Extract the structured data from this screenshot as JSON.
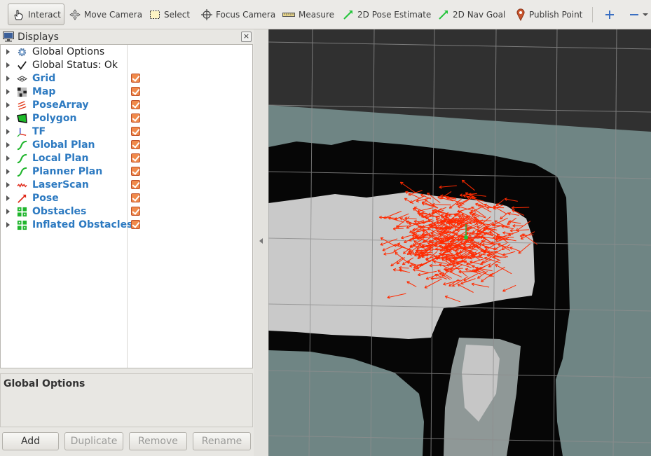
{
  "toolbar": {
    "tools": [
      {
        "label": "Interact",
        "icon": "hand-cursor-icon",
        "active": true
      },
      {
        "label": "Move Camera",
        "icon": "move-camera-icon"
      },
      {
        "label": "Select",
        "icon": "select-rectangle-icon"
      },
      {
        "label": "Focus Camera",
        "icon": "crosshair-icon"
      },
      {
        "label": "Measure",
        "icon": "ruler-icon"
      },
      {
        "label": "2D Pose Estimate",
        "icon": "green-arrow-icon"
      },
      {
        "label": "2D Nav Goal",
        "icon": "green-arrow-icon"
      },
      {
        "label": "Publish Point",
        "icon": "map-pin-icon"
      }
    ],
    "add_tool_icon": "plus-icon",
    "remove_tool_icon": "minus-icon"
  },
  "displays": {
    "title": "Displays",
    "items": [
      {
        "label": "Global Options",
        "icon": "gear-icon",
        "checked": null
      },
      {
        "label": "Global Status: Ok",
        "icon": "checkmark-icon",
        "checked": null
      },
      {
        "label": "Grid",
        "icon": "grid-icon",
        "checked": true
      },
      {
        "label": "Map",
        "icon": "map-icon",
        "checked": true
      },
      {
        "label": "PoseArray",
        "icon": "pose-array-icon",
        "checked": true
      },
      {
        "label": "Polygon",
        "icon": "polygon-icon",
        "checked": true
      },
      {
        "label": "TF",
        "icon": "tf-axes-icon",
        "checked": true
      },
      {
        "label": "Global Plan",
        "icon": "path-icon",
        "checked": true
      },
      {
        "label": "Local Plan",
        "icon": "path-icon",
        "checked": true
      },
      {
        "label": "Planner Plan",
        "icon": "path-icon",
        "checked": true
      },
      {
        "label": "LaserScan",
        "icon": "laser-scan-icon",
        "checked": true
      },
      {
        "label": "Pose",
        "icon": "pose-arrow-icon",
        "checked": true
      },
      {
        "label": "Obstacles",
        "icon": "grid-cells-icon",
        "checked": true
      },
      {
        "label": "Inflated Obstacles",
        "icon": "grid-cells-icon",
        "checked": true
      }
    ],
    "description_title": "Global Options",
    "buttons": {
      "add": "Add",
      "duplicate": "Duplicate",
      "remove": "Remove",
      "rename": "Rename"
    }
  },
  "colors": {
    "accent_label": "#2d7ac1",
    "checkbox": "#f08a4b",
    "pose_arrows": "#ff2a00",
    "grid_lines": "#9a9a9a",
    "map_free": "#c9c9c9",
    "map_unknown": "#6f8584",
    "map_occupied": "#000000",
    "background": "#303030"
  }
}
